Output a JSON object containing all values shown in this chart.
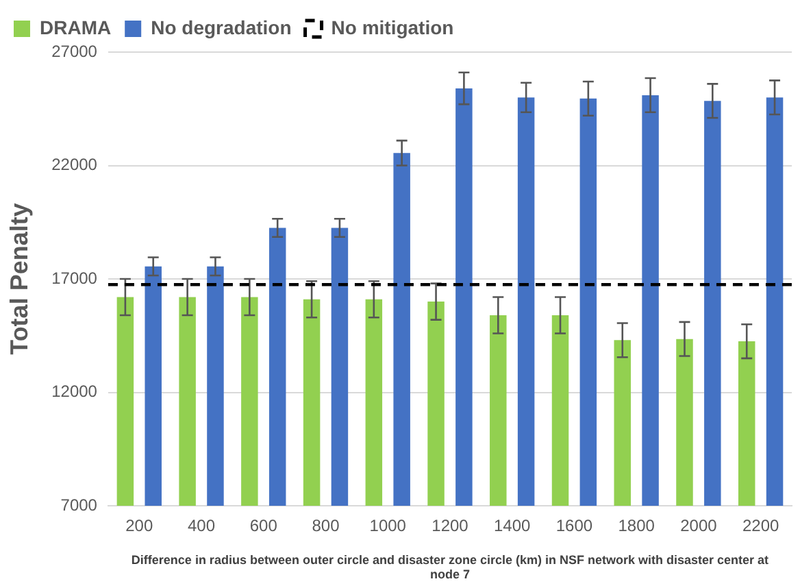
{
  "chart_data": {
    "type": "bar",
    "xlabel": "Difference in radius between outer circle and disaster zone circle (km) in NSF network with disaster center at node 7",
    "ylabel": "Total Penalty",
    "categories": [
      "200",
      "400",
      "600",
      "800",
      "1000",
      "1200",
      "1400",
      "1600",
      "1800",
      "2000",
      "2200"
    ],
    "series": [
      {
        "name": "DRAMA",
        "color": "#92d050",
        "values": [
          16200,
          16200,
          16200,
          16100,
          16100,
          16000,
          15400,
          15400,
          14300,
          14350,
          14250
        ],
        "errors": [
          800,
          800,
          800,
          800,
          800,
          800,
          800,
          800,
          750,
          750,
          750
        ]
      },
      {
        "name": "No degradation",
        "color": "#4472c4",
        "values": [
          17550,
          17550,
          19250,
          19250,
          22550,
          25400,
          25000,
          24950,
          25100,
          24850,
          25000
        ],
        "errors": [
          400,
          400,
          400,
          400,
          550,
          700,
          650,
          750,
          750,
          750,
          750
        ]
      }
    ],
    "ref_lines": [
      {
        "axis": "y",
        "value": 16750,
        "label": "No mitigation",
        "color": "#000000",
        "line_style": "dashed"
      }
    ],
    "ylim": [
      7000,
      27000
    ],
    "yticks": [
      7000,
      12000,
      17000,
      22000,
      27000
    ],
    "grid": "y",
    "legend": "top left"
  }
}
